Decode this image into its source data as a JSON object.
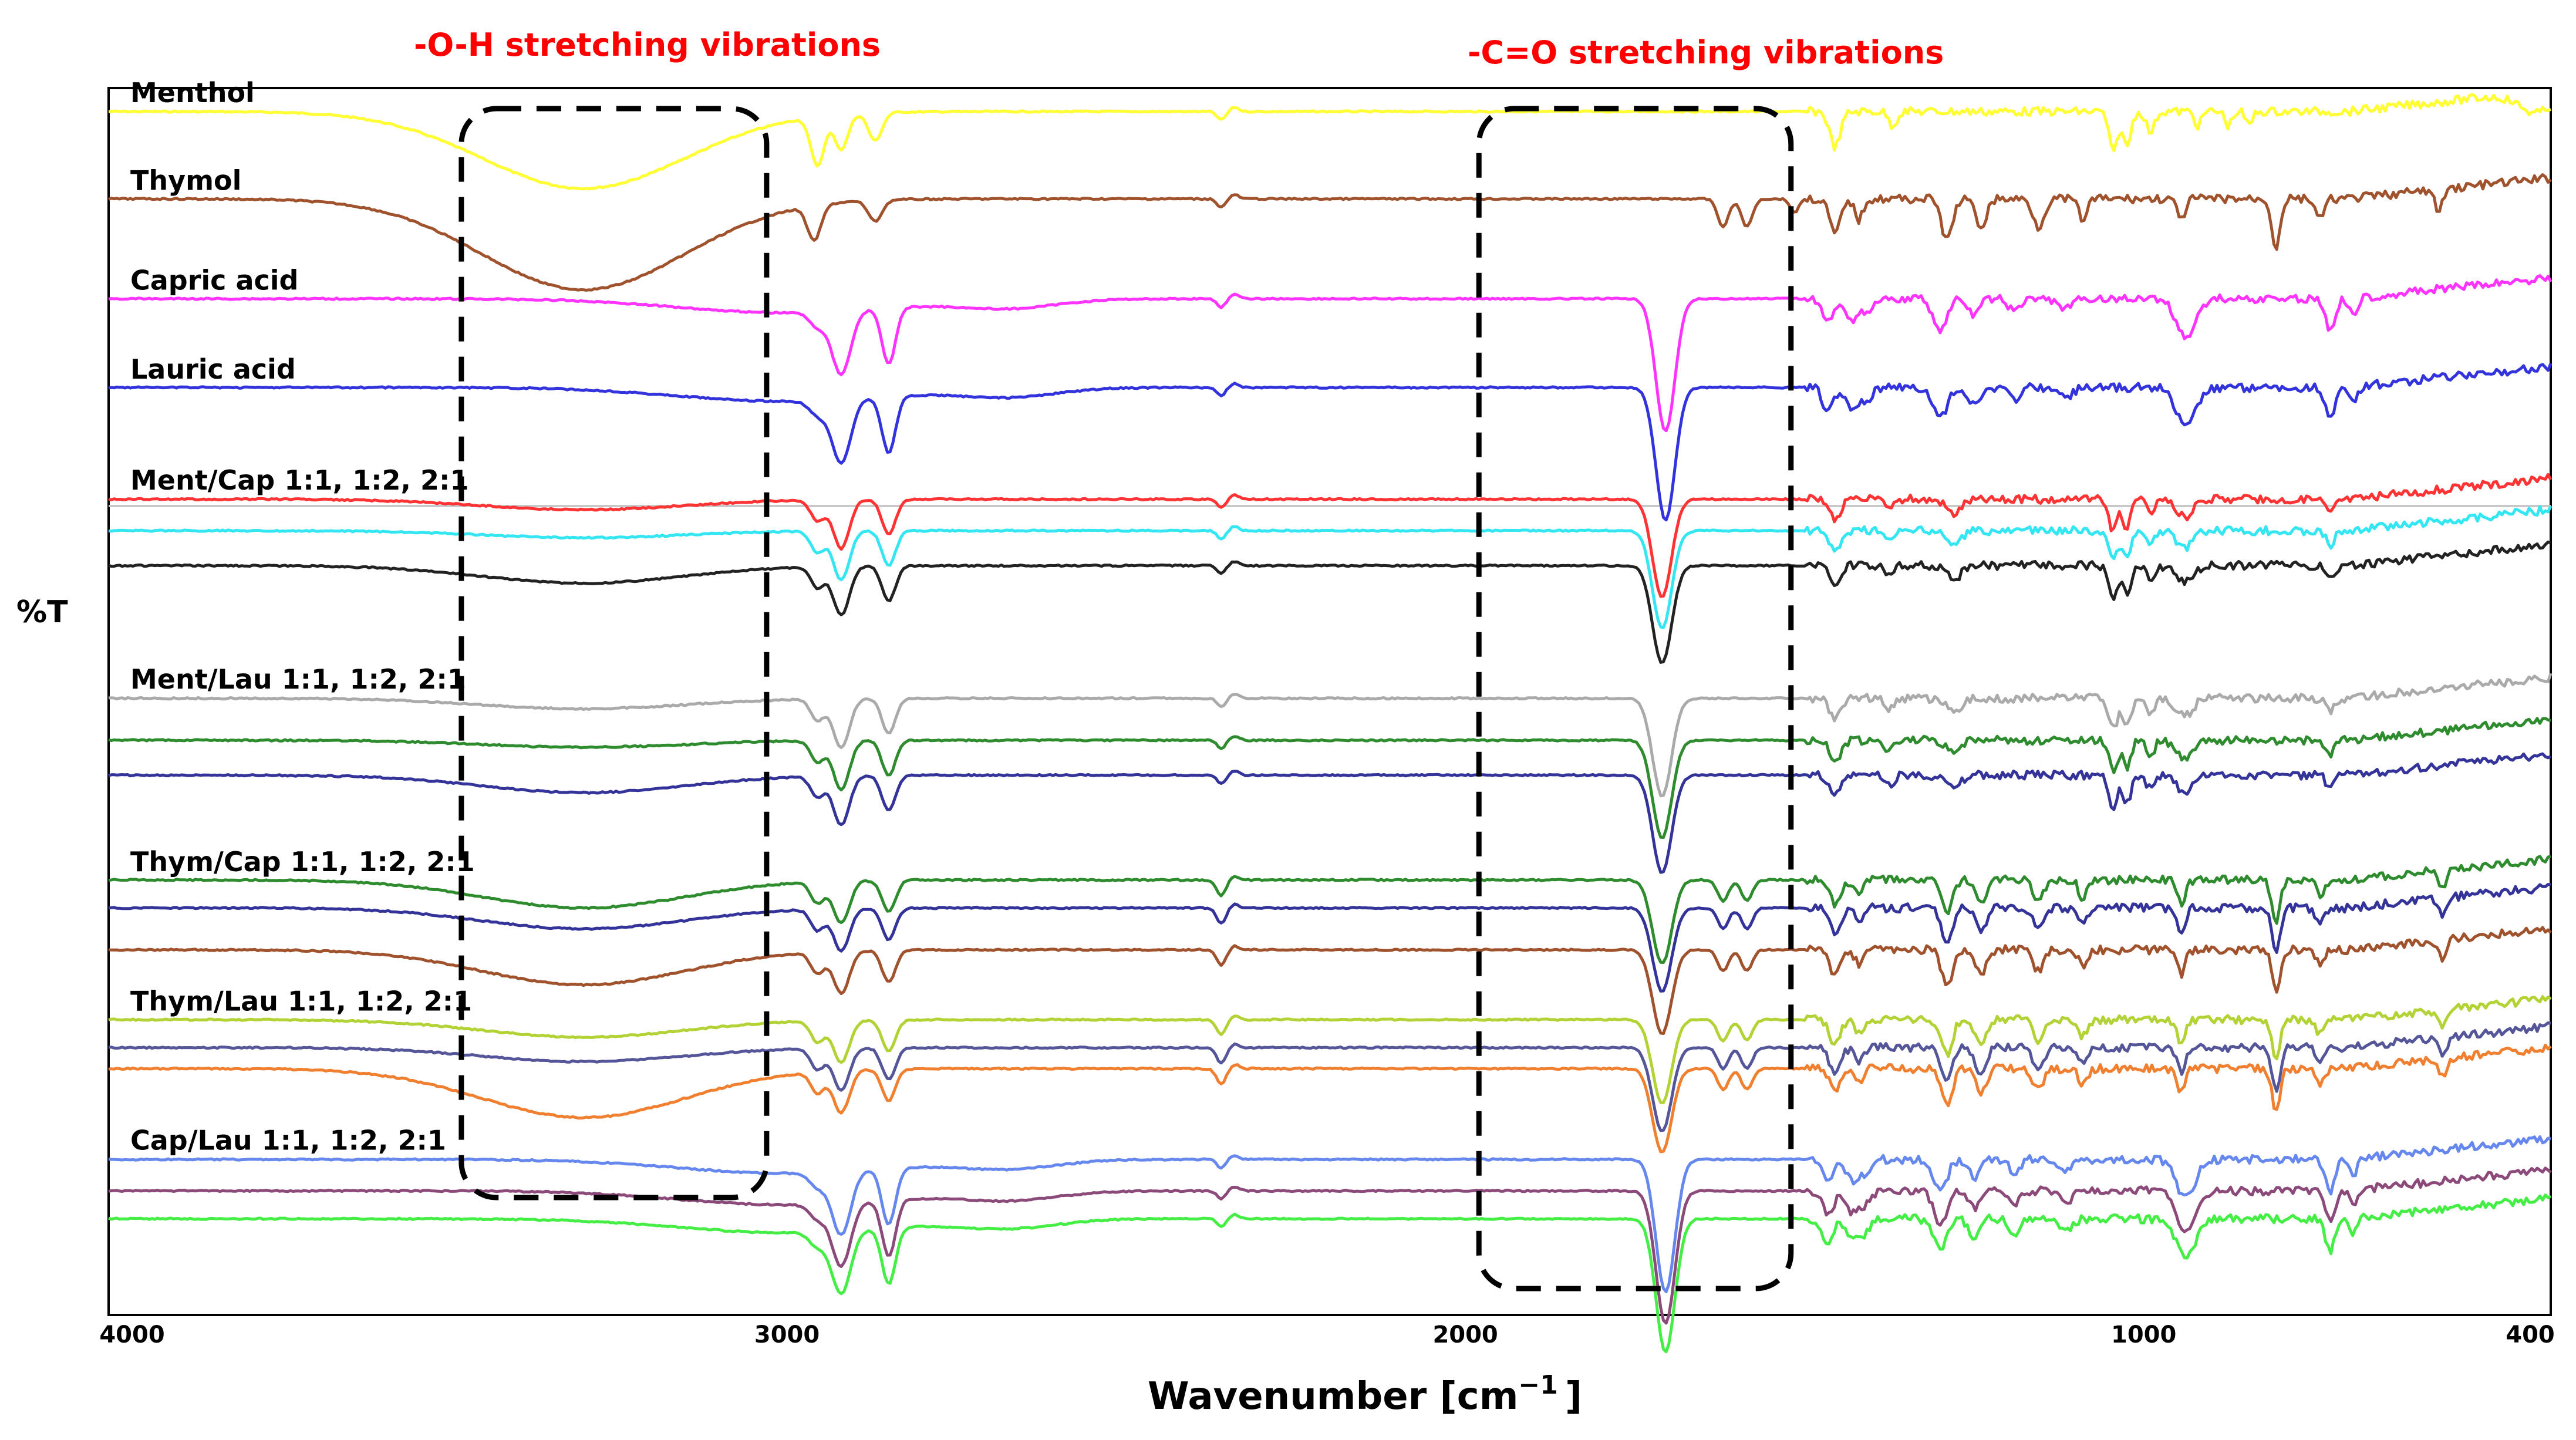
{
  "chart_data": {
    "type": "line",
    "title": "",
    "xlabel": "Wavenumber [cm",
    "xlabel_sup": "−1",
    "xlabel_close": "]",
    "ylabel": "%T",
    "xlim": [
      4000,
      400
    ],
    "x_reversed": true,
    "xticks": [
      "4000",
      "3000",
      "2000",
      "1000",
      "400"
    ],
    "grid": false,
    "annotations": [
      {
        "text": "-O-H stretching vibrations",
        "color": "#ff0000",
        "region": [
          3480,
          3030
        ]
      },
      {
        "text": "-C=O stretching vibrations",
        "color": "#ff0000",
        "region": [
          1980,
          1520
        ]
      }
    ],
    "group_labels": [
      {
        "text": "Menthol",
        "anchor_series": "Menthol"
      },
      {
        "text": "Thymol",
        "anchor_series": "Thymol"
      },
      {
        "text": "Capric acid",
        "anchor_series": "Capric acid"
      },
      {
        "text": "Lauric acid",
        "anchor_series": "Lauric acid"
      },
      {
        "text": "Ment/Cap 1:1, 1:2, 2:1",
        "anchor_series": "Ment/Cap 1:1"
      },
      {
        "text": "Ment/Lau 1:1, 1:2, 2:1",
        "anchor_series": "Ment/Lau 1:1"
      },
      {
        "text": "Thym/Cap 1:1, 1:2, 2:1",
        "anchor_series": "Thym/Cap 1:1"
      },
      {
        "text": "Thym/Lau 1:1, 1:2, 2:1",
        "anchor_series": "Thym/Lau 1:1"
      },
      {
        "text": "Cap/Lau 1:1, 1:2, 2:1",
        "anchor_series": "Cap/Lau 1:1"
      }
    ],
    "series": [
      {
        "name": "Menthol",
        "color": "#ffff33",
        "offset": 0.0,
        "oh": 0.11,
        "type": "menthol"
      },
      {
        "name": "Thymol",
        "color": "#a0522d",
        "offset": 0.125,
        "oh": 0.13,
        "type": "thymol"
      },
      {
        "name": "Capric acid",
        "color": "#ff33ff",
        "offset": 0.268,
        "oh": 0.0,
        "type": "acid"
      },
      {
        "name": "Lauric acid",
        "color": "#3333dd",
        "offset": 0.395,
        "oh": 0.0,
        "type": "acid"
      },
      {
        "name": "Ment/Cap 1:1",
        "color": "#ff3333",
        "offset": 0.555,
        "oh": 0.015,
        "type": "mix"
      },
      {
        "name": "Ment/Cap 1:2",
        "color": "#33e6f2",
        "offset": 0.6,
        "oh": 0.01,
        "type": "mix"
      },
      {
        "name": "Ment/Cap 2:1",
        "color": "#222222",
        "offset": 0.65,
        "oh": 0.025,
        "type": "mix"
      },
      {
        "name": "Ment/Lau 1:1",
        "color": "#aaaaaa",
        "offset": 0.84,
        "oh": 0.015,
        "type": "mix"
      },
      {
        "name": "Ment/Lau 1:2",
        "color": "#2e8b2e",
        "offset": 0.9,
        "oh": 0.01,
        "type": "mix"
      },
      {
        "name": "Ment/Lau 2:1",
        "color": "#333399",
        "offset": 0.95,
        "oh": 0.025,
        "type": "mix"
      },
      {
        "name": "Thym/Cap 1:1",
        "color": "#2e8b2e",
        "offset": 1.1,
        "oh": 0.04,
        "type": "thymmix"
      },
      {
        "name": "Thym/Cap 1:2",
        "color": "#333399",
        "offset": 1.14,
        "oh": 0.03,
        "type": "thymmix"
      },
      {
        "name": "Thym/Cap 2:1",
        "color": "#a0522d",
        "offset": 1.2,
        "oh": 0.05,
        "type": "thymmix"
      },
      {
        "name": "Thym/Lau 1:1",
        "color": "#b2d235",
        "offset": 1.3,
        "oh": 0.025,
        "type": "thymmix"
      },
      {
        "name": "Thym/Lau 1:2",
        "color": "#555599",
        "offset": 1.34,
        "oh": 0.02,
        "type": "thymmix"
      },
      {
        "name": "Thym/Lau 2:1",
        "color": "#f08030",
        "offset": 1.37,
        "oh": 0.07,
        "type": "thymmix"
      },
      {
        "name": "Cap/Lau 1:1",
        "color": "#6688ee",
        "offset": 1.5,
        "oh": 0.0,
        "type": "acid"
      },
      {
        "name": "Cap/Lau 1:2",
        "color": "#8b4a7a",
        "offset": 1.545,
        "oh": 0.0,
        "type": "acid"
      },
      {
        "name": "Cap/Lau 2:1",
        "color": "#44ee44",
        "offset": 1.585,
        "oh": 0.0,
        "type": "acid"
      }
    ]
  }
}
